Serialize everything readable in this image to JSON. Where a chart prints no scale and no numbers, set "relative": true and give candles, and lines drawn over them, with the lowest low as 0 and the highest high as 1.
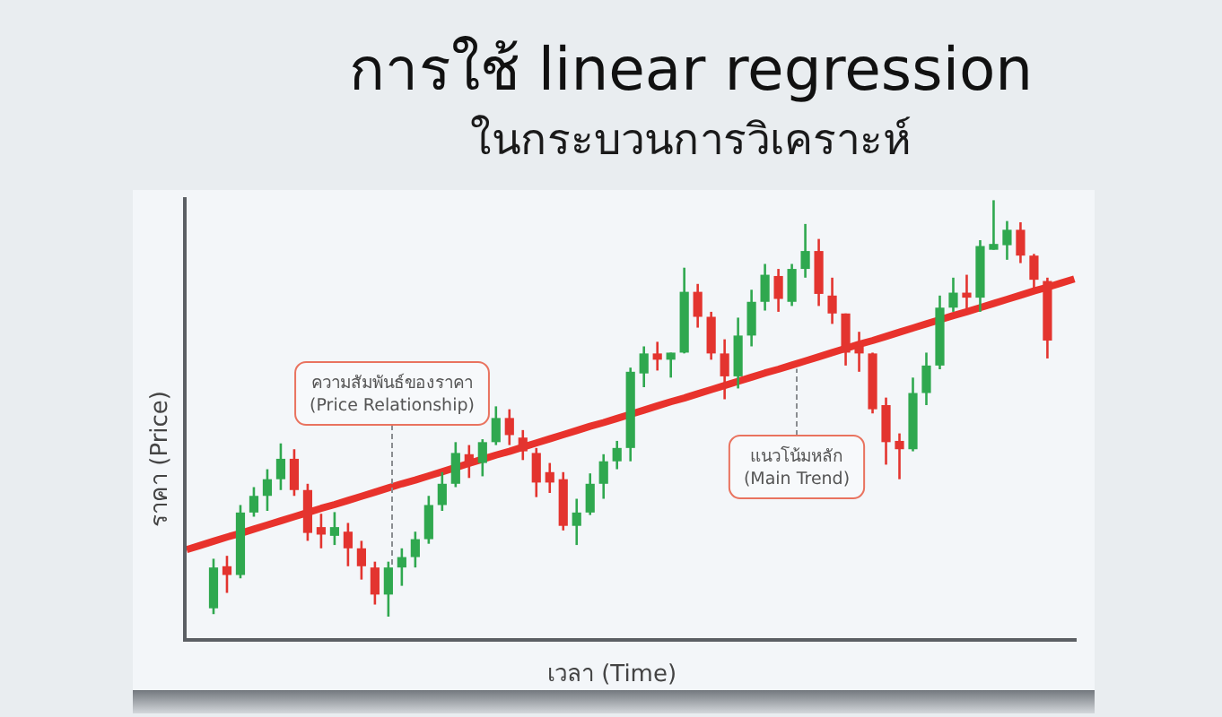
{
  "chart_data": {
    "type": "candlestick",
    "title": "การใช้ linear regression",
    "subtitle": "ในกระบวนการวิเคราะห์",
    "xlabel": "เวลา (Time)",
    "ylabel": "ราคา (Price)",
    "annotations": [
      "ความสัมพันธ์ของราคา\n(Price Relationship)",
      "แนวโน้มหลัก\n(Main Trend)"
    ],
    "relative": true,
    "categories": [
      null,
      null,
      null,
      null,
      null,
      null,
      null,
      null,
      null,
      null,
      null,
      null,
      null,
      null,
      null,
      null,
      null,
      null,
      null,
      null,
      null,
      null,
      null,
      null,
      null,
      null,
      null,
      null,
      null,
      null,
      null,
      null,
      null,
      null,
      null,
      null,
      null,
      null,
      null,
      null,
      null,
      null,
      null,
      null,
      null,
      null,
      null,
      null,
      null,
      null,
      null,
      null,
      null,
      null,
      null,
      null,
      null,
      null,
      null,
      null,
      null,
      null,
      null,
      null,
      null,
      null,
      null
    ],
    "ohlc": [
      null,
      null,
      [
        0.02,
        0.139,
        0.006,
        0.118
      ],
      [
        0.121,
        0.146,
        0.057,
        0.1
      ],
      [
        0.1,
        0.268,
        0.092,
        0.25
      ],
      [
        0.25,
        0.311,
        0.24,
        0.29
      ],
      [
        0.29,
        0.354,
        0.254,
        0.33
      ],
      [
        0.33,
        0.416,
        0.304,
        0.379
      ],
      [
        0.379,
        0.402,
        0.29,
        0.304
      ],
      [
        0.304,
        0.319,
        0.182,
        0.201
      ],
      [
        0.215,
        0.247,
        0.164,
        0.197
      ],
      [
        0.194,
        0.251,
        0.172,
        0.215
      ],
      [
        0.204,
        0.225,
        0.121,
        0.164
      ],
      [
        0.164,
        0.182,
        0.089,
        0.121
      ],
      [
        0.118,
        0.132,
        0.029,
        0.053
      ],
      [
        0.053,
        0.132,
        0.0,
        0.118
      ],
      [
        0.118,
        0.164,
        0.074,
        0.143
      ],
      [
        0.143,
        0.204,
        0.118,
        0.186
      ],
      [
        0.186,
        0.29,
        0.175,
        0.268
      ],
      [
        0.268,
        0.347,
        0.254,
        0.319
      ],
      [
        0.319,
        0.419,
        0.311,
        0.393
      ],
      [
        0.39,
        0.412,
        0.333,
        0.365
      ],
      [
        0.369,
        0.426,
        0.337,
        0.419
      ],
      [
        0.419,
        0.505,
        0.412,
        0.477
      ],
      [
        0.477,
        0.498,
        0.412,
        0.436
      ],
      [
        0.43,
        0.448,
        0.376,
        0.397
      ],
      [
        0.393,
        0.405,
        0.287,
        0.322
      ],
      [
        0.347,
        0.369,
        0.297,
        0.322
      ],
      [
        0.33,
        0.347,
        0.207,
        0.218
      ],
      [
        0.218,
        0.283,
        0.172,
        0.25
      ],
      [
        0.25,
        0.344,
        0.244,
        0.319
      ],
      [
        0.319,
        0.39,
        0.283,
        0.373
      ],
      [
        0.373,
        0.422,
        0.354,
        0.405
      ],
      [
        0.405,
        0.598,
        0.373,
        0.588
      ],
      [
        0.584,
        0.649,
        0.551,
        0.632
      ],
      [
        0.632,
        0.66,
        0.591,
        0.617
      ],
      [
        0.617,
        0.634,
        0.574,
        0.634
      ],
      [
        0.634,
        0.838,
        0.632,
        0.78
      ],
      [
        0.78,
        0.799,
        0.694,
        0.72
      ],
      [
        0.72,
        0.732,
        0.617,
        0.632
      ],
      [
        0.632,
        0.666,
        0.522,
        0.577
      ],
      [
        0.577,
        0.718,
        0.548,
        0.675
      ],
      [
        0.675,
        0.785,
        0.649,
        0.756
      ],
      [
        0.756,
        0.847,
        0.735,
        0.821
      ],
      [
        0.818,
        0.835,
        0.732,
        0.763
      ],
      [
        0.756,
        0.847,
        0.746,
        0.835
      ],
      [
        0.835,
        0.943,
        0.814,
        0.878
      ],
      [
        0.878,
        0.907,
        0.746,
        0.775
      ],
      [
        0.771,
        0.814,
        0.703,
        0.728
      ],
      [
        0.728,
        0.728,
        0.603,
        0.634
      ],
      [
        0.649,
        0.684,
        0.588,
        0.632
      ],
      [
        0.632,
        0.634,
        0.488,
        0.498
      ],
      [
        0.508,
        0.526,
        0.365,
        0.419
      ],
      [
        0.422,
        0.44,
        0.33,
        0.402
      ],
      [
        0.402,
        0.574,
        0.397,
        0.537
      ],
      [
        0.537,
        0.634,
        0.508,
        0.603
      ],
      [
        0.603,
        0.771,
        0.594,
        0.742
      ],
      [
        0.742,
        0.814,
        0.732,
        0.778
      ],
      [
        0.778,
        0.821,
        0.737,
        0.766
      ],
      [
        0.766,
        0.904,
        0.732,
        0.89
      ],
      [
        0.881,
        1.0,
        0.881,
        0.895
      ],
      [
        0.892,
        0.95,
        0.857,
        0.929
      ],
      [
        0.929,
        0.947,
        0.849,
        0.867
      ],
      [
        0.867,
        0.871,
        0.789,
        0.809
      ],
      [
        0.806,
        0.814,
        0.62,
        0.663
      ],
      null,
      null
    ],
    "colors": [
      null,
      null,
      "#2fa84f",
      "#e3342f",
      "#2fa84f",
      "#2fa84f",
      "#2fa84f",
      "#2fa84f",
      "#e3342f",
      "#e3342f",
      "#e3342f",
      "#2fa84f",
      "#e3342f",
      "#e3342f",
      "#e3342f",
      "#2fa84f",
      "#2fa84f",
      "#2fa84f",
      "#2fa84f",
      "#2fa84f",
      "#2fa84f",
      "#e3342f",
      "#2fa84f",
      "#2fa84f",
      "#e3342f",
      "#e3342f",
      "#e3342f",
      "#e3342f",
      "#e3342f",
      "#2fa84f",
      "#2fa84f",
      "#2fa84f",
      "#2fa84f",
      "#2fa84f",
      "#2fa84f",
      "#e3342f",
      "#2fa84f",
      "#2fa84f",
      "#e3342f",
      "#e3342f",
      "#e3342f",
      "#2fa84f",
      "#2fa84f",
      "#2fa84f",
      "#e3342f",
      "#2fa84f",
      "#2fa84f",
      "#e3342f",
      "#e3342f",
      "#e3342f",
      "#e3342f",
      "#e3342f",
      "#e3342f",
      "#e3342f",
      "#2fa84f",
      "#2fa84f",
      "#2fa84f",
      "#2fa84f",
      "#e3342f",
      "#2fa84f",
      "#2fa84f",
      "#2fa84f",
      "#e3342f",
      "#e3342f",
      "#e3342f",
      null,
      null
    ],
    "series": [
      {
        "type": "line",
        "color": "#e8322c",
        "values": [
          0.161,
          0.171,
          0.181,
          0.191,
          0.2,
          0.21,
          0.22,
          0.23,
          0.24,
          0.25,
          0.26,
          0.269,
          0.279,
          0.289,
          0.299,
          0.309,
          0.319,
          0.328,
          0.338,
          0.348,
          0.358,
          0.368,
          0.378,
          0.388,
          0.397,
          0.407,
          0.417,
          0.427,
          0.437,
          0.447,
          0.457,
          0.466,
          0.476,
          0.486,
          0.496,
          0.506,
          0.516,
          0.525,
          0.535,
          0.545,
          0.555,
          0.565,
          0.575,
          0.585,
          0.594,
          0.604,
          0.614,
          0.624,
          0.634,
          0.644,
          0.654,
          0.663,
          0.673,
          0.683,
          0.693,
          0.703,
          0.713,
          0.723,
          0.732,
          0.742,
          0.752,
          0.762,
          0.772,
          0.782,
          0.791,
          0.801,
          0.811
        ]
      }
    ]
  }
}
